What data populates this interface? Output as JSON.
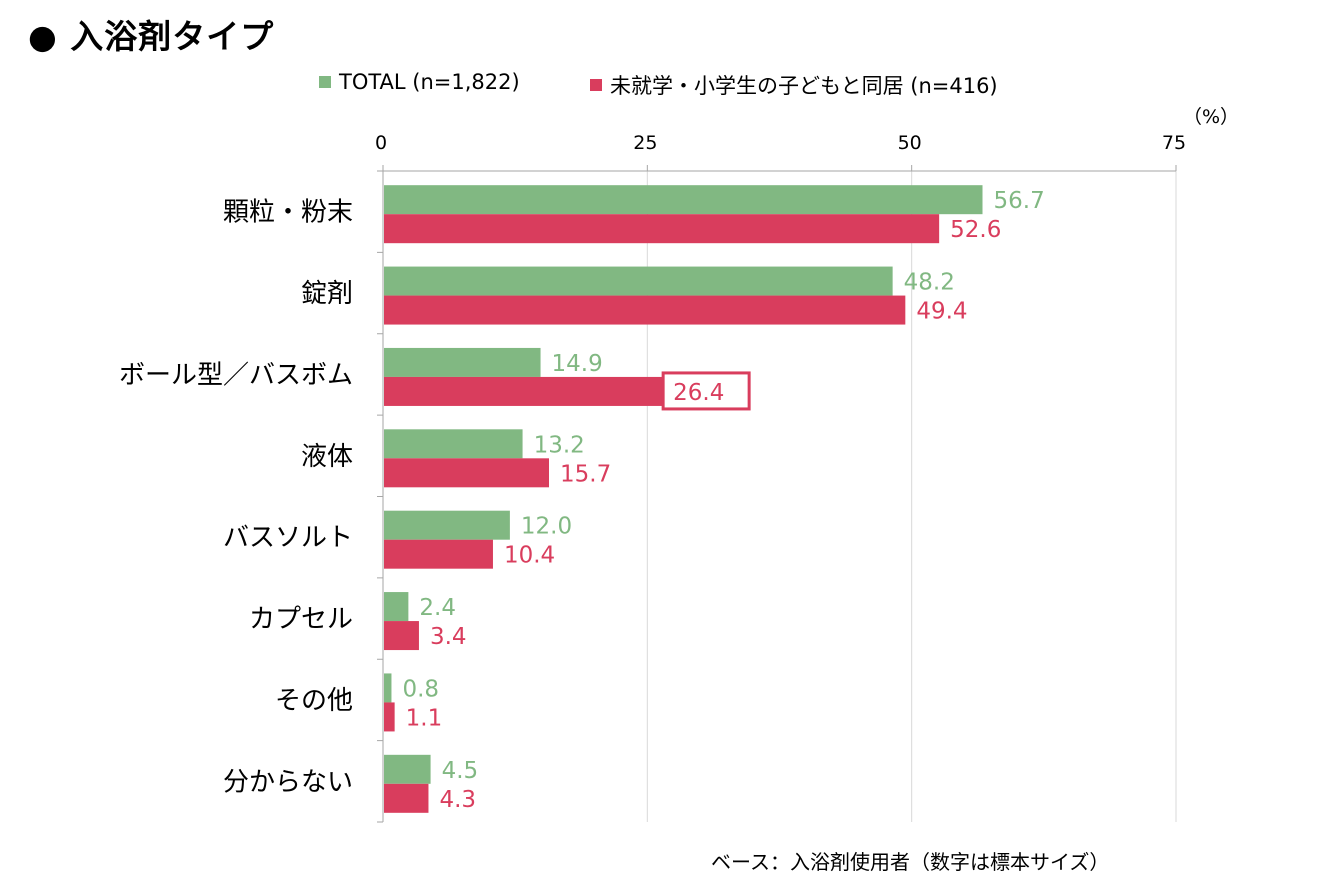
{
  "title": "● 入浴剤タイプ",
  "unit": "（%）",
  "base_note": "ベース：入浴剤使用者（数字は標本サイズ）",
  "colors": {
    "total": "#81b882",
    "kids": "#d93d5d",
    "grid": "#d9d9d9",
    "axis": "#a6a6a6"
  },
  "chart_data": {
    "type": "bar",
    "orientation": "horizontal",
    "xlim": [
      0,
      75
    ],
    "ticks": [
      0,
      25,
      50,
      75
    ],
    "grid": true,
    "legend_position": "top",
    "categories": [
      "顆粒・粉末",
      "錠剤",
      "ボール型／バスボム",
      "液体",
      "バスソルト",
      "カプセル",
      "その他",
      "分からない"
    ],
    "series": [
      {
        "name": "TOTAL (n=1,822)",
        "values": [
          56.7,
          48.2,
          14.9,
          13.2,
          12.0,
          2.4,
          0.8,
          4.5
        ],
        "labels": [
          "56.7",
          "48.2",
          "14.9",
          "13.2",
          "12.0",
          "2.4",
          "0.8",
          "4.5"
        ]
      },
      {
        "name": "未就学・小学生の子どもと同居 (n=416)",
        "values": [
          52.6,
          49.4,
          26.4,
          15.7,
          10.4,
          3.4,
          1.1,
          4.3
        ],
        "labels": [
          "52.6",
          "49.4",
          "26.4",
          "15.7",
          "10.4",
          "3.4",
          "1.1",
          "4.3"
        ]
      }
    ],
    "highlight": {
      "series": 1,
      "category": 2
    }
  }
}
